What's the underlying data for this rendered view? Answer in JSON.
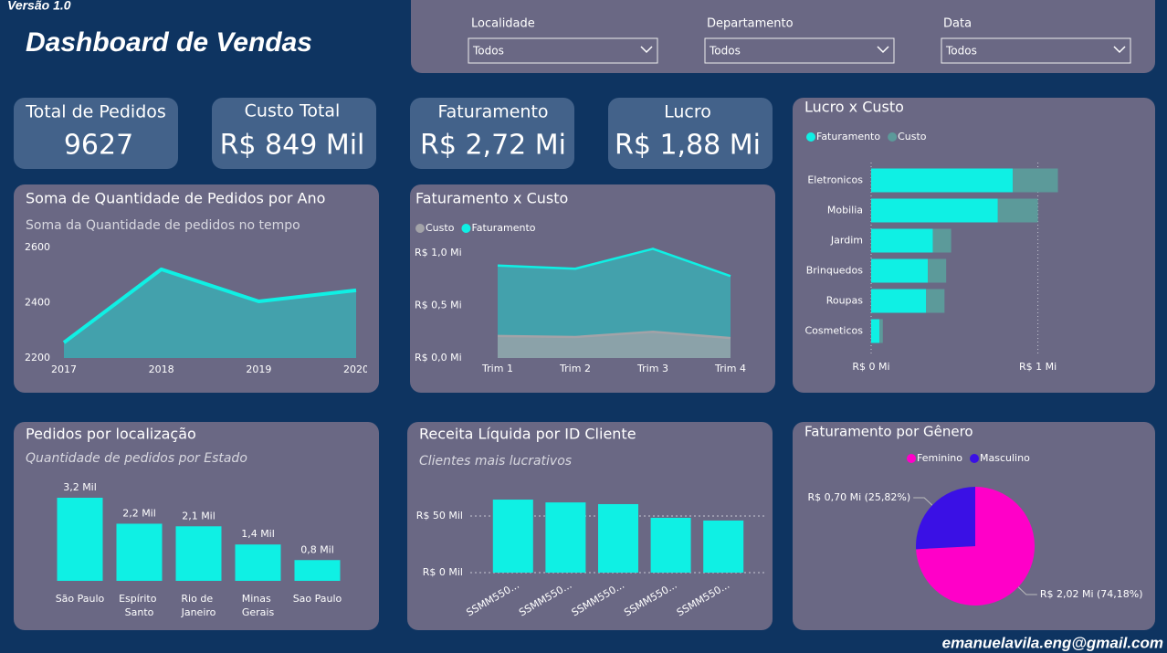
{
  "header": {
    "version": "Versão 1.0",
    "title": "Dashboard de Vendas",
    "footer": "emanuelavila.eng@gmail.com"
  },
  "filters": [
    {
      "label": "Localidade",
      "value": "Todos"
    },
    {
      "label": "Departamento",
      "value": "Todos"
    },
    {
      "label": "Data",
      "value": "Todos"
    }
  ],
  "kpis": [
    {
      "label": "Total de Pedidos",
      "value": 9627
    },
    {
      "label": "Custo Total",
      "value": "R$ 849 Mil"
    },
    {
      "label": "Faturamento",
      "value": "R$ 2,72 Mi"
    },
    {
      "label": "Lucro",
      "value": "R$ 1,88 Mi"
    }
  ],
  "chart_data": [
    {
      "type": "area",
      "title": "Soma de Quantidade de Pedidos por Ano",
      "subtitle": "Soma da Quantidade de pedidos no tempo",
      "categories": [
        "2017",
        "2018",
        "2019",
        "2020"
      ],
      "values": [
        2256,
        2521,
        2405,
        2445
      ],
      "color": "#0ff0e4",
      "ylim": [
        2200,
        2600
      ],
      "yticks": [
        2200,
        2400,
        2600
      ],
      "grid": false
    },
    {
      "type": "area",
      "title": "Faturamento x Custo",
      "categories": [
        "Trim 1",
        "Trim 2",
        "Trim 3",
        "Trim 4"
      ],
      "series": [
        {
          "name": "Custo",
          "color": "#a3a3a8",
          "values": [
            0.21,
            0.2,
            0.25,
            0.19
          ]
        },
        {
          "name": "Faturamento",
          "color": "#0ff0e4",
          "values": [
            0.88,
            0.85,
            1.04,
            0.78
          ]
        }
      ],
      "ylim": [
        0,
        1.1
      ],
      "yticks": [
        {
          "value": 0,
          "label": "R$ 0,0 Mi"
        },
        {
          "value": 0.5,
          "label": "R$ 0,5 Mi"
        },
        {
          "value": 1,
          "label": "R$ 1,0 Mi"
        }
      ],
      "grid": false
    },
    {
      "type": "bar",
      "orientation": "horizontal",
      "stacked": true,
      "title": "Lucro x Custo",
      "categories": [
        "Eletronicos",
        "Mobilia",
        "Jardim",
        "Brinquedos",
        "Roupas",
        "Cosmeticos"
      ],
      "series": [
        {
          "name": "Faturamento",
          "color": "#0ff0e4",
          "values": [
            0.85,
            0.76,
            0.37,
            0.34,
            0.33,
            0.05
          ]
        },
        {
          "name": "Custo",
          "color": "#5c9a9a",
          "values": [
            0.27,
            0.24,
            0.11,
            0.11,
            0.11,
            0.02
          ]
        }
      ],
      "xlim": [
        0,
        1.15
      ],
      "xticks": [
        {
          "value": 0,
          "label": "R$ 0 Mi"
        },
        {
          "value": 1,
          "label": "R$ 1 Mi"
        }
      ],
      "grid": true
    },
    {
      "type": "bar",
      "title": "Pedidos por localização",
      "subtitle": "Quantidade de pedidos por Estado",
      "categories": [
        "São Paulo",
        "Espírito Santo",
        "Rio de Janeiro",
        "Minas Gerais",
        "Sao Paulo"
      ],
      "values": [
        3.2,
        2.2,
        2.1,
        1.4,
        0.8
      ],
      "value_labels": [
        "3,2 Mil",
        "2,2 Mil",
        "2,1 Mil",
        "1,4 Mil",
        "0,8 Mil"
      ],
      "color": "#0ff0e4"
    },
    {
      "type": "bar",
      "title": "Receita Líquida por ID Cliente",
      "subtitle": "Clientes mais lucrativos",
      "categories": [
        "SSMM550...",
        "SSMM550...",
        "SSMM550...",
        "SSMM550...",
        "SSMM550..."
      ],
      "values": [
        64.5,
        62,
        60.5,
        48.4,
        46
      ],
      "color": "#0ff0e4",
      "ylim": [
        0,
        70
      ],
      "yticks": [
        {
          "value": 0,
          "label": "R$ 0 Mil"
        },
        {
          "value": 50,
          "label": "R$ 50 Mil"
        }
      ],
      "grid": true
    },
    {
      "type": "pie",
      "title": "Faturamento por Gênero",
      "categories": [
        "Feminino",
        "Masculino"
      ],
      "values": [
        74.18,
        25.82
      ],
      "value_labels": [
        "R$ 2,02 Mi (74,18%)",
        "R$ 0,70 Mi (25,82%)"
      ],
      "colors": [
        "#ff00c8",
        "#3a10e5"
      ]
    }
  ]
}
